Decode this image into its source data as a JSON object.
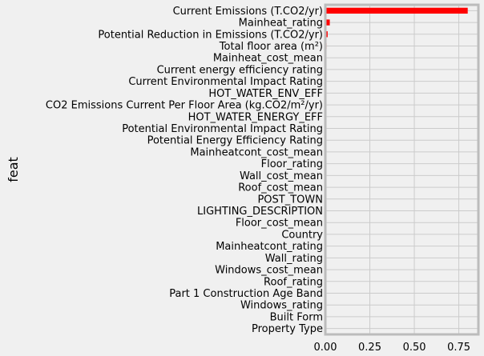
{
  "chart_data": {
    "type": "bar",
    "orientation": "horizontal",
    "ylabel": "feat",
    "xlabel": "",
    "xlim": [
      0,
      0.86
    ],
    "xticks": [
      0.0,
      0.25,
      0.5,
      0.75
    ],
    "xtick_labels": [
      "0.00",
      "0.25",
      "0.50",
      "0.75"
    ],
    "grid": true,
    "bar_color": "#ff0000",
    "categories": [
      "Current Emissions (T.CO2/yr)",
      "Mainheat_rating",
      "Potential Reduction in Emissions (T.CO2/yr)",
      "Total floor area (m²)",
      "Mainheat_cost_mean",
      "Current energy efficiency rating",
      "Current Environmental Impact Rating",
      "HOT_WATER_ENV_EFF",
      "CO2 Emissions Current Per Floor Area (kg.CO2/m²/yr)",
      "HOT_WATER_ENERGY_EFF",
      "Potential Environmental Impact Rating",
      "Potential Energy Efficiency Rating",
      "Mainheatcont_cost_mean",
      "Floor_rating",
      "Wall_cost_mean",
      "Roof_cost_mean",
      "POST_TOWN",
      "LIGHTING_DESCRIPTION",
      "Floor_cost_mean",
      "Country",
      "Mainheatcont_rating",
      "Wall_rating",
      "Windows_cost_mean",
      "Roof_rating",
      "Part 1 Construction Age Band",
      "Windows_rating",
      "Built Form",
      "Property Type"
    ],
    "values": [
      0.8,
      0.025,
      0.013,
      0.007,
      0.006,
      0.005,
      0.002,
      0.002,
      0.0015,
      0.0015,
      0.001,
      0.001,
      0.0008,
      0.0007,
      0.0006,
      0.0006,
      0.0005,
      0.0004,
      0.0004,
      0.0003,
      0.0003,
      0.0002,
      0.0002,
      0.0002,
      0.0001,
      0.0001,
      0.0001,
      0.0001
    ]
  }
}
